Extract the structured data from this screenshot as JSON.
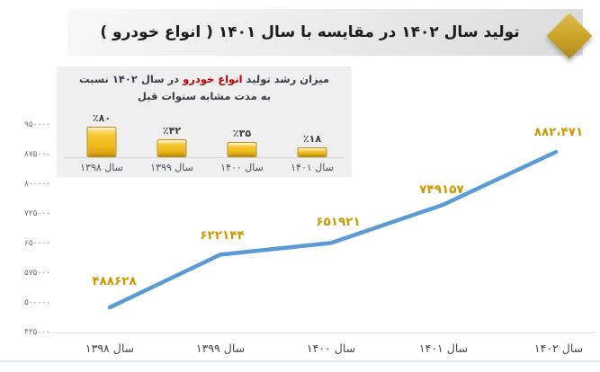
{
  "header": {
    "title": "تولید سال ۱۴۰۲ در مقایسه با سال ۱۴۰۱ ( انواع خودرو )"
  },
  "inset": {
    "title_part1": "میزان رشد تولید ",
    "title_highlight": "انواع خودرو",
    "title_part2": " در سال ۱۴۰۲ نسبت",
    "title_line2": "به مدت مشابه سنوات قبل"
  },
  "colors": {
    "line_blue": "#5b9bd5",
    "data_label_gold": "#cc9900",
    "bar_gold": "#f2c12e",
    "highlight_red": "#c00000",
    "diamond_gold": "#c9a227"
  },
  "chart_data": [
    {
      "type": "line",
      "title": "تولید سال ۱۴۰۲ در مقایسه با سال ۱۴۰۱ ( انواع خودرو )",
      "categories": [
        "سال ۱۳۹۸",
        "سال ۱۳۹۹",
        "سال ۱۴۰۰",
        "سال ۱۴۰۱",
        "سال ۱۴۰۲"
      ],
      "values": [
        488628,
        622144,
        651921,
        749157,
        882471
      ],
      "point_labels": [
        "۴۸۸۶۲۸",
        "۶۲۲۱۴۴",
        "۶۵۱۹۲۱",
        "۷۴۹۱۵۷",
        "۸۸۲،۴۷۱"
      ],
      "y_tick_labels": [
        "۹۵۰۰۰۰",
        "۸۷۵۰۰۰",
        "۸۰۰۰۰۰",
        "۷۲۵۰۰۰",
        "۶۵۰۰۰۰",
        "۵۷۵۰۰۰",
        "۵۰۰۰۰۰",
        "۴۲۵۰۰۰"
      ],
      "y_tick_values": [
        950000,
        875000,
        800000,
        725000,
        650000,
        575000,
        500000,
        425000
      ],
      "ylim": [
        425000,
        950000
      ],
      "grid": false,
      "legend": "none",
      "line_color": "#5b9bd5"
    },
    {
      "type": "bar",
      "title": "میزان رشد تولید انواع خودرو در سال ۱۴۰۲ نسبت به مدت مشابه سنوات قبل",
      "categories": [
        "سال ۱۳۹۸",
        "سال ۱۳۹۹",
        "سال ۱۴۰۰",
        "سال ۱۴۰۱"
      ],
      "values": [
        80,
        42,
        35,
        18
      ],
      "value_labels": [
        "٪۸۰",
        "٪۴۲",
        "٪۳۵",
        "٪۱۸"
      ],
      "unit": "percent",
      "ylim": [
        0,
        80
      ],
      "grid": false,
      "legend": "none",
      "bar_color": "#f2c12e"
    }
  ]
}
